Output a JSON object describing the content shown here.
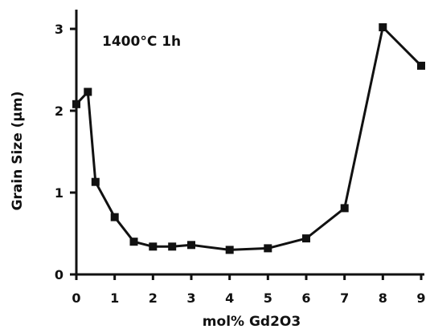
{
  "chart_data": {
    "type": "line",
    "title": "",
    "annotation": "1400°C 1h",
    "xlabel": "mol% Gd2O3",
    "ylabel": "Grain Size (μm)",
    "xlim": [
      0,
      9
    ],
    "ylim": [
      0,
      3
    ],
    "xticks": [
      0,
      1,
      2,
      3,
      4,
      5,
      6,
      7,
      8,
      9
    ],
    "yticks": [
      0,
      1,
      2,
      3
    ],
    "grid": false,
    "legend": "none",
    "series": [
      {
        "x": [
          0,
          0.3,
          0.5,
          1,
          1.5,
          2,
          2.5,
          3,
          4,
          5,
          6,
          7,
          8,
          9
        ],
        "y": [
          2.08,
          2.23,
          1.13,
          0.7,
          0.4,
          0.34,
          0.34,
          0.36,
          0.3,
          0.32,
          0.44,
          0.81,
          3.02,
          2.55
        ],
        "color": "#111111",
        "marker": "square"
      }
    ]
  }
}
